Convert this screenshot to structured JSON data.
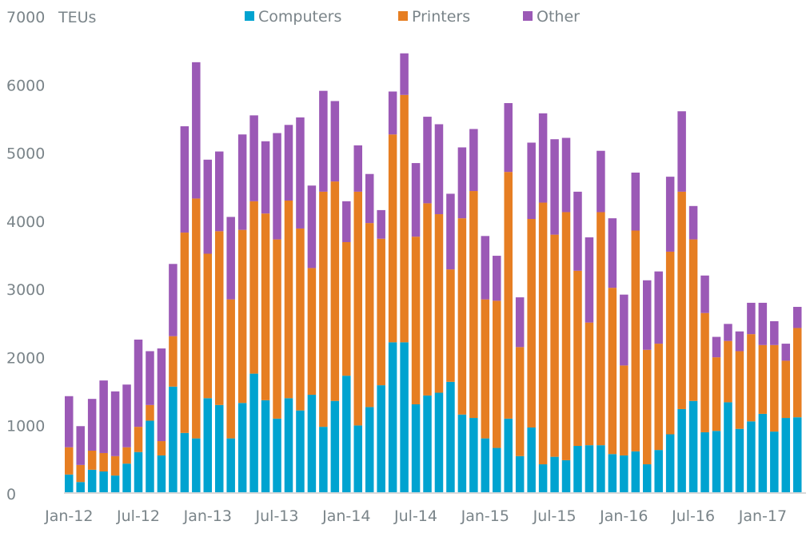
{
  "chart_data": {
    "type": "bar",
    "stacked": true,
    "title": "",
    "ylabel": "TEUs",
    "xlabel": "",
    "ylim": [
      0,
      7000
    ],
    "yticks": [
      0,
      1000,
      2000,
      3000,
      4000,
      5000,
      6000,
      7000
    ],
    "grid": false,
    "legend_position": "top-center",
    "xtick_labels": [
      "Jan-12",
      "Jul-12",
      "Jan-13",
      "Jul-13",
      "Jan-14",
      "Jul-14",
      "Jan-15",
      "Jul-15",
      "Jan-16",
      "Jul-16",
      "Jan-17"
    ],
    "xtick_every": 6,
    "categories": [
      "Jan-12",
      "Feb-12",
      "Mar-12",
      "Apr-12",
      "May-12",
      "Jun-12",
      "Jul-12",
      "Aug-12",
      "Sep-12",
      "Oct-12",
      "Nov-12",
      "Dec-12",
      "Jan-13",
      "Feb-13",
      "Mar-13",
      "Apr-13",
      "May-13",
      "Jun-13",
      "Jul-13",
      "Aug-13",
      "Sep-13",
      "Oct-13",
      "Nov-13",
      "Dec-13",
      "Jan-14",
      "Feb-14",
      "Mar-14",
      "Apr-14",
      "May-14",
      "Jun-14",
      "Jul-14",
      "Aug-14",
      "Sep-14",
      "Oct-14",
      "Nov-14",
      "Dec-14",
      "Jan-15",
      "Feb-15",
      "Mar-15",
      "Apr-15",
      "May-15",
      "Jun-15",
      "Jul-15",
      "Aug-15",
      "Sep-15",
      "Oct-15",
      "Nov-15",
      "Dec-15",
      "Jan-16",
      "Feb-16",
      "Mar-16",
      "Apr-16",
      "May-16",
      "Jun-16",
      "Jul-16",
      "Aug-16",
      "Sep-16",
      "Oct-16",
      "Nov-16",
      "Dec-16",
      "Jan-17",
      "Feb-17",
      "Mar-17",
      "Apr-17"
    ],
    "series": [
      {
        "name": "Computers",
        "color": "#00a3d0",
        "values": [
          260,
          150,
          330,
          305,
          245,
          420,
          590,
          1050,
          540,
          1550,
          870,
          790,
          1380,
          1280,
          790,
          1310,
          1740,
          1350,
          1080,
          1380,
          1200,
          1430,
          960,
          1340,
          1710,
          980,
          1250,
          1570,
          2200,
          2200,
          1290,
          1420,
          1460,
          1620,
          1140,
          1090,
          790,
          650,
          1080,
          530,
          950,
          410,
          520,
          470,
          680,
          690,
          690,
          560,
          540,
          600,
          410,
          620,
          850,
          1220,
          1340,
          880,
          900,
          1320,
          930,
          1040,
          1150,
          890,
          1090,
          1100
        ]
      },
      {
        "name": "Printers",
        "color": "#e67e22",
        "values": [
          400,
          250,
          280,
          270,
          285,
          240,
          370,
          230,
          210,
          740,
          2940,
          3520,
          2120,
          2550,
          2040,
          2540,
          2530,
          2740,
          2630,
          2900,
          2670,
          1860,
          3450,
          3220,
          1960,
          3430,
          2700,
          2150,
          3050,
          3630,
          2460,
          2820,
          2620,
          1650,
          2880,
          3330,
          2040,
          2160,
          3620,
          1600,
          3060,
          3840,
          3260,
          3640,
          2570,
          1800,
          3420,
          2440,
          1320,
          3240,
          1680,
          1560,
          2680,
          3190,
          2370,
          1750,
          1080,
          900,
          1140,
          1280,
          1010,
          1270,
          840,
          1310
        ]
      },
      {
        "name": "Other",
        "color": "#9b59b6",
        "values": [
          750,
          570,
          760,
          1065,
          950,
          920,
          1280,
          790,
          1360,
          1060,
          1560,
          2000,
          1380,
          1170,
          1210,
          1400,
          1260,
          1060,
          1560,
          1110,
          1630,
          1210,
          1480,
          1180,
          600,
          680,
          720,
          420,
          630,
          610,
          1080,
          1270,
          1320,
          1110,
          1040,
          910,
          930,
          660,
          1010,
          730,
          1120,
          1310,
          1400,
          1090,
          1160,
          1250,
          900,
          1020,
          1040,
          850,
          1020,
          1060,
          1100,
          1180,
          490,
          550,
          300,
          250,
          290,
          460,
          620,
          350,
          250,
          310
        ]
      }
    ]
  }
}
